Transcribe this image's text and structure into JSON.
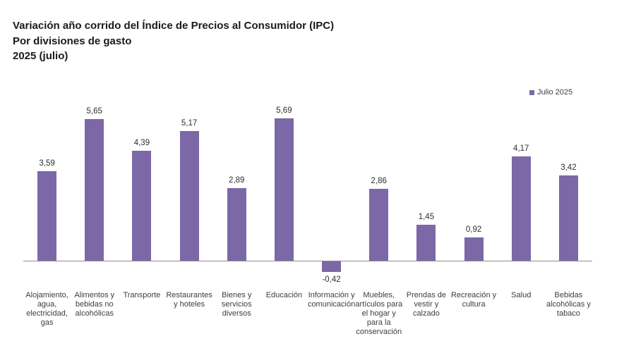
{
  "title": {
    "line1": "Variación año corrido del Índice de Precios al Consumidor (IPC)",
    "line2": "Por divisiones de gasto",
    "line3": "2025 (julio)"
  },
  "legend": {
    "label": "Julio 2025"
  },
  "colors": {
    "bar": "#7C68A6",
    "legend_marker": "#7C68A6",
    "axis": "#8C8C8C"
  },
  "chart_data": {
    "type": "bar",
    "title": "Variación año corrido del Índice de Precios al Consumidor (IPC)",
    "subtitle": "Por divisiones de gasto",
    "period": "2025 (julio)",
    "categories": [
      "Alojamiento, agua, electricidad, gas",
      "Alimentos y bebidas no alcohólicas",
      "Transporte",
      "Restaurantes y hoteles",
      "Bienes y servicios diversos",
      "Educación",
      "Información y comunicación",
      "Muebles, artículos para el hogar y para la conservación",
      "Prendas de vestir y calzado",
      "Recreación y cultura",
      "Salud",
      "Bebidas alcohólicas y tabaco"
    ],
    "series": [
      {
        "name": "Julio 2025",
        "values": [
          3.59,
          5.65,
          4.39,
          5.17,
          2.89,
          5.69,
          -0.42,
          2.86,
          1.45,
          0.92,
          4.17,
          3.42
        ]
      }
    ],
    "value_labels": [
      "3,59",
      "5,65",
      "4,39",
      "5,17",
      "2,89",
      "5,69",
      "-0,42",
      "2,86",
      "1,45",
      "0,92",
      "4,17",
      "3,42"
    ],
    "xlabel": "",
    "ylabel": "",
    "ylim": [
      -0.6,
      6.2
    ],
    "grid": false,
    "legend_position": "top-right"
  }
}
